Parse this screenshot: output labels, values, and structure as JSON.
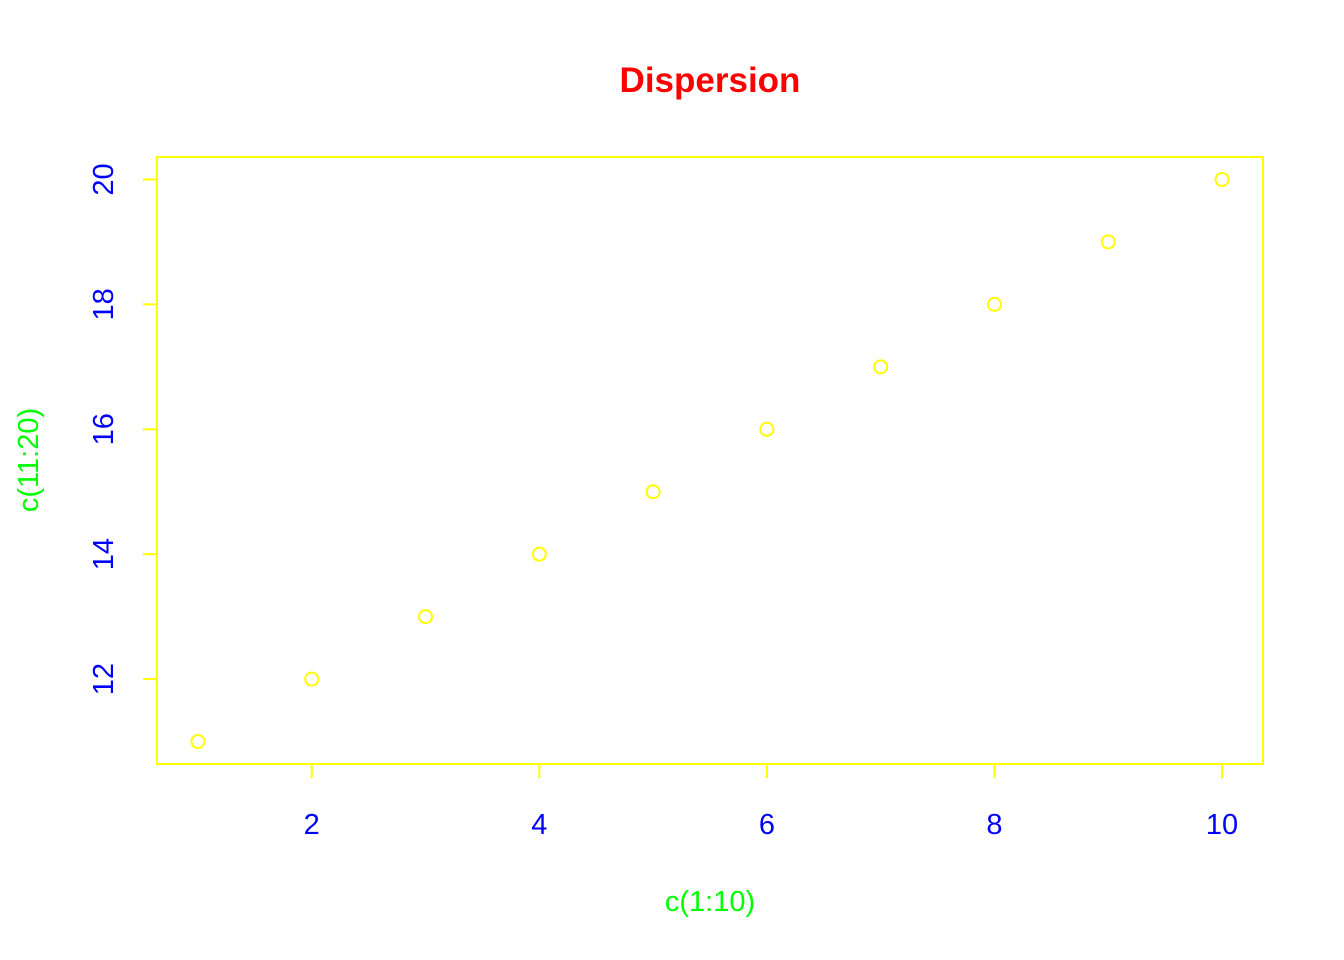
{
  "chart_data": {
    "type": "scatter",
    "title": "Dispersion",
    "xlabel": "c(1:10)",
    "ylabel": "c(11:20)",
    "x": [
      1,
      2,
      3,
      4,
      5,
      6,
      7,
      8,
      9,
      10
    ],
    "y": [
      11,
      12,
      13,
      14,
      15,
      16,
      17,
      18,
      19,
      20
    ],
    "xlim": [
      0.64,
      10.36
    ],
    "ylim": [
      10.64,
      20.36
    ],
    "x_ticks": [
      2,
      4,
      6,
      8,
      10
    ],
    "y_ticks": [
      12,
      14,
      16,
      18,
      20
    ],
    "grid": false,
    "legend": "none",
    "marker": "open-circle",
    "colors": {
      "title": "#ff0000",
      "axis_labels": "#00ff00",
      "tick_labels": "#0000ff",
      "axes": "#ffff00",
      "points": "#ffff00"
    }
  }
}
